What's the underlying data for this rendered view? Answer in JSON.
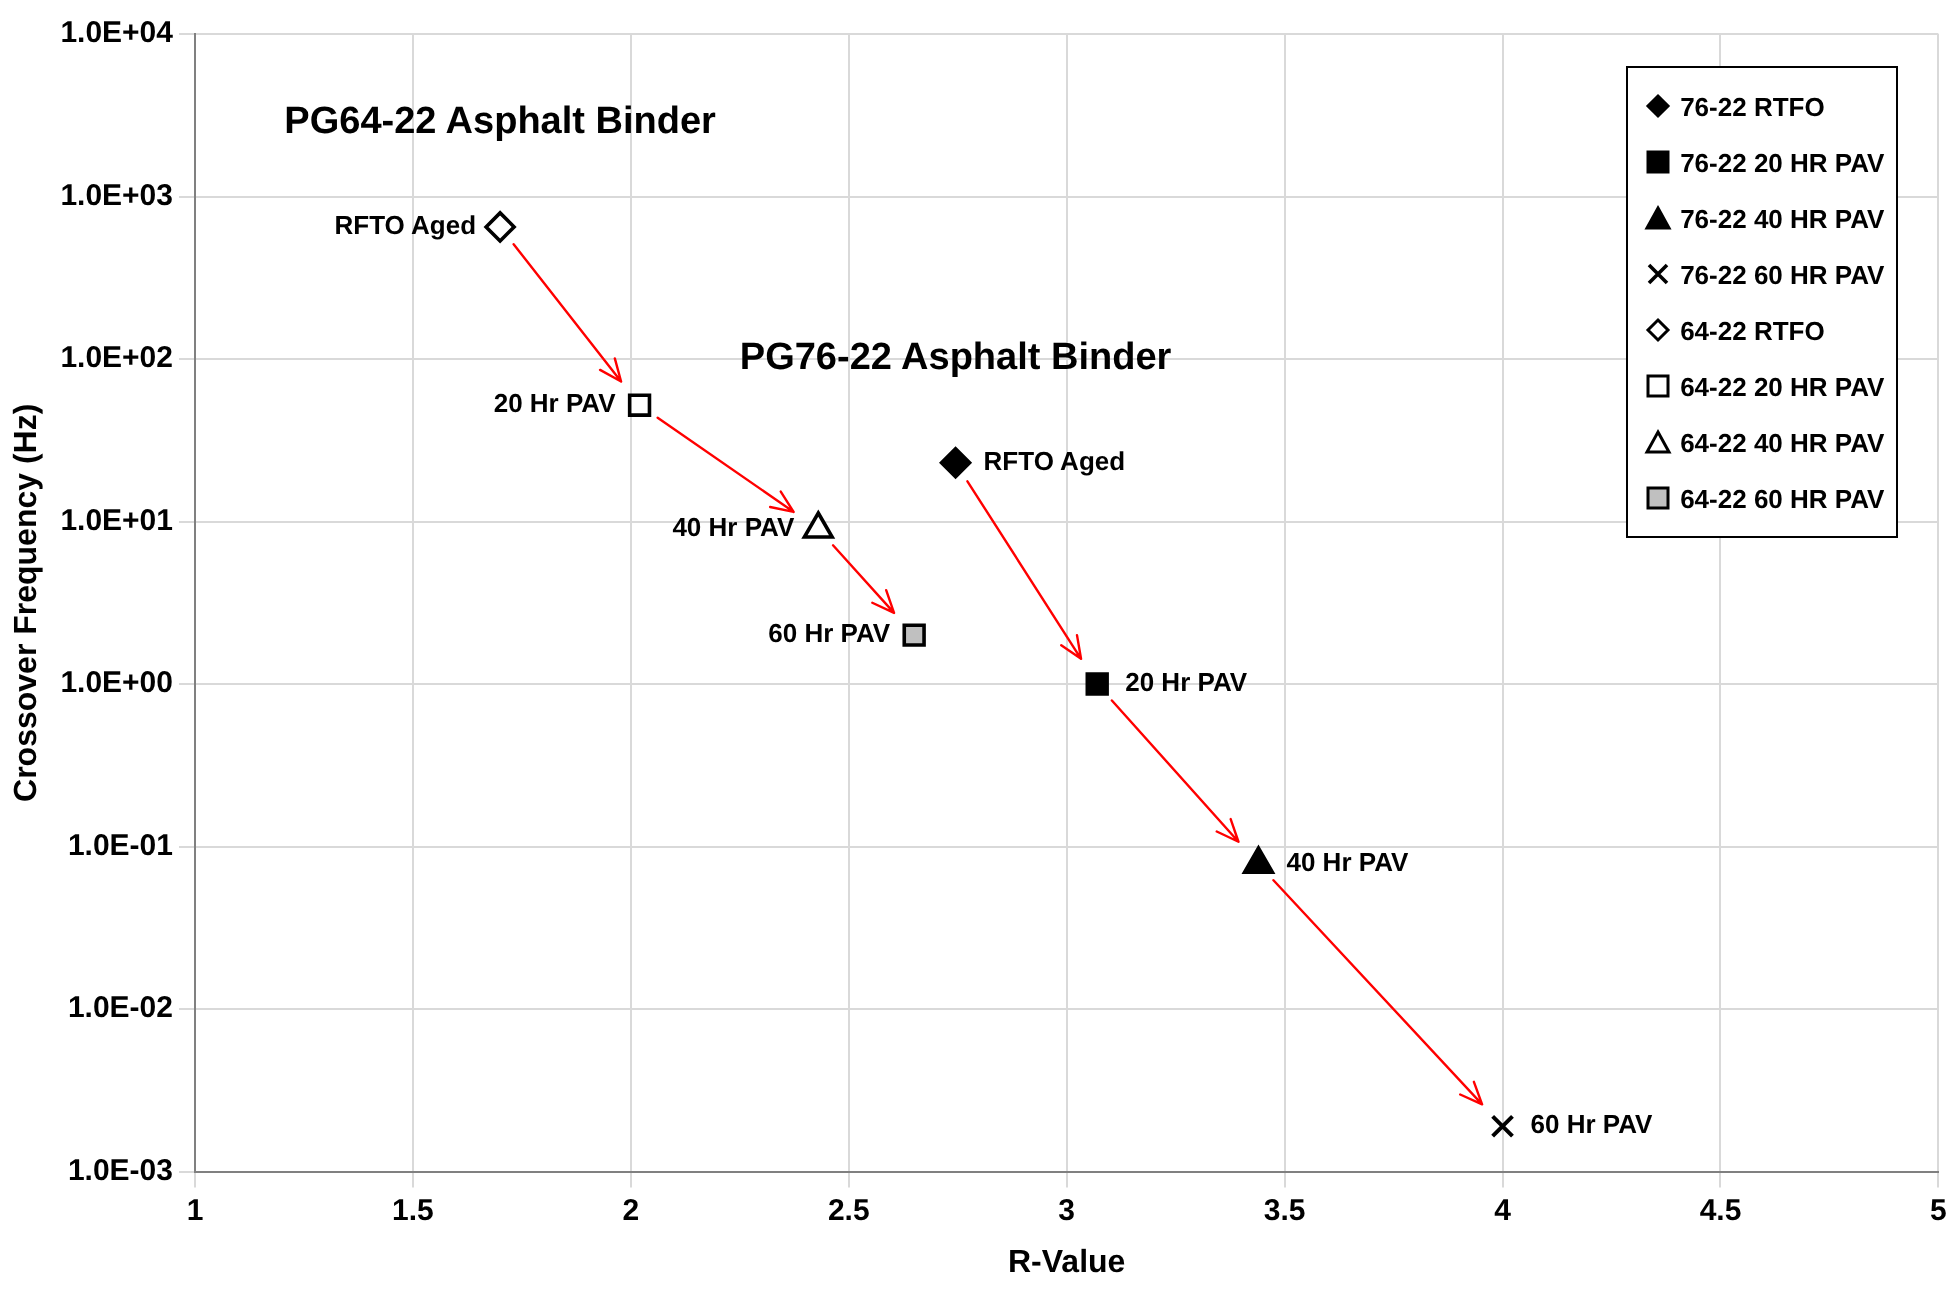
{
  "chart_data": {
    "type": "scatter",
    "xlabel": "R-Value",
    "ylabel": "Crossover Frequency (Hz)",
    "xlim": [
      1,
      5
    ],
    "xticks": [
      1,
      1.5,
      2,
      2.5,
      3,
      3.5,
      4,
      4.5,
      5
    ],
    "ylim": [
      0.001,
      10000
    ],
    "log": "y",
    "yticks": [
      {
        "value": 0.001,
        "label": "1.0E-03"
      },
      {
        "value": 0.01,
        "label": "1.0E-02"
      },
      {
        "value": 0.1,
        "label": "1.0E-01"
      },
      {
        "value": 1,
        "label": "1.0E+00"
      },
      {
        "value": 10,
        "label": "1.0E+01"
      },
      {
        "value": 100,
        "label": "1.0E+02"
      },
      {
        "value": 1000,
        "label": "1.0E+03"
      },
      {
        "value": 10000,
        "label": "1.0E+04"
      }
    ],
    "grid": true,
    "legend": "top right",
    "series": [
      {
        "name": "76-22 RTFO",
        "color": "#000000",
        "marker": "diamond",
        "x": [
          2.745
        ],
        "values": [
          23
        ]
      },
      {
        "name": "76-22 20 HR PAV",
        "color": "#000000",
        "marker": "square",
        "x": [
          3.07
        ],
        "values": [
          1.0
        ]
      },
      {
        "name": "76-22 40 HR PAV",
        "color": "#000000",
        "marker": "triangle",
        "x": [
          3.44
        ],
        "values": [
          0.078
        ]
      },
      {
        "name": "76-22 60 HR PAV",
        "color": "#000000",
        "marker": "cross",
        "x": [
          4.0
        ],
        "values": [
          0.0019
        ]
      },
      {
        "name": "64-22 RTFO",
        "color": "#ffffff",
        "marker": "diamond",
        "x": [
          1.7
        ],
        "values": [
          650
        ]
      },
      {
        "name": "64-22 20 HR PAV",
        "color": "#ffffff",
        "marker": "square",
        "x": [
          2.02
        ],
        "values": [
          52
        ]
      },
      {
        "name": "64-22 40 HR PAV",
        "color": "#ffffff",
        "marker": "triangle",
        "x": [
          2.43
        ],
        "values": [
          9
        ]
      },
      {
        "name": "64-22 60 HR PAV",
        "color": "#c0c0c0",
        "marker": "square",
        "x": [
          2.65
        ],
        "values": [
          2.0
        ]
      }
    ],
    "annotations": [
      {
        "text": "PG64-22 Asphalt Binder",
        "x": 1.7,
        "y": 650
      },
      {
        "text": "PG76-22 Asphalt Binder",
        "x": 2.745,
        "y": 23
      },
      {
        "text": "RFTO Aged",
        "x": 1.7,
        "y": 650
      },
      {
        "text": "20 Hr PAV",
        "x": 2.02,
        "y": 52
      },
      {
        "text": "40 Hr PAV",
        "x": 2.43,
        "y": 9
      },
      {
        "text": "60 Hr PAV",
        "x": 2.65,
        "y": 2.0
      },
      {
        "text": "RFTO Aged",
        "x": 2.745,
        "y": 23
      },
      {
        "text": "20 Hr PAV",
        "x": 3.07,
        "y": 1.0
      },
      {
        "text": "40 Hr PAV",
        "x": 3.44,
        "y": 0.078
      },
      {
        "text": "60 Hr PAV",
        "x": 4.0,
        "y": 0.0019
      }
    ]
  }
}
